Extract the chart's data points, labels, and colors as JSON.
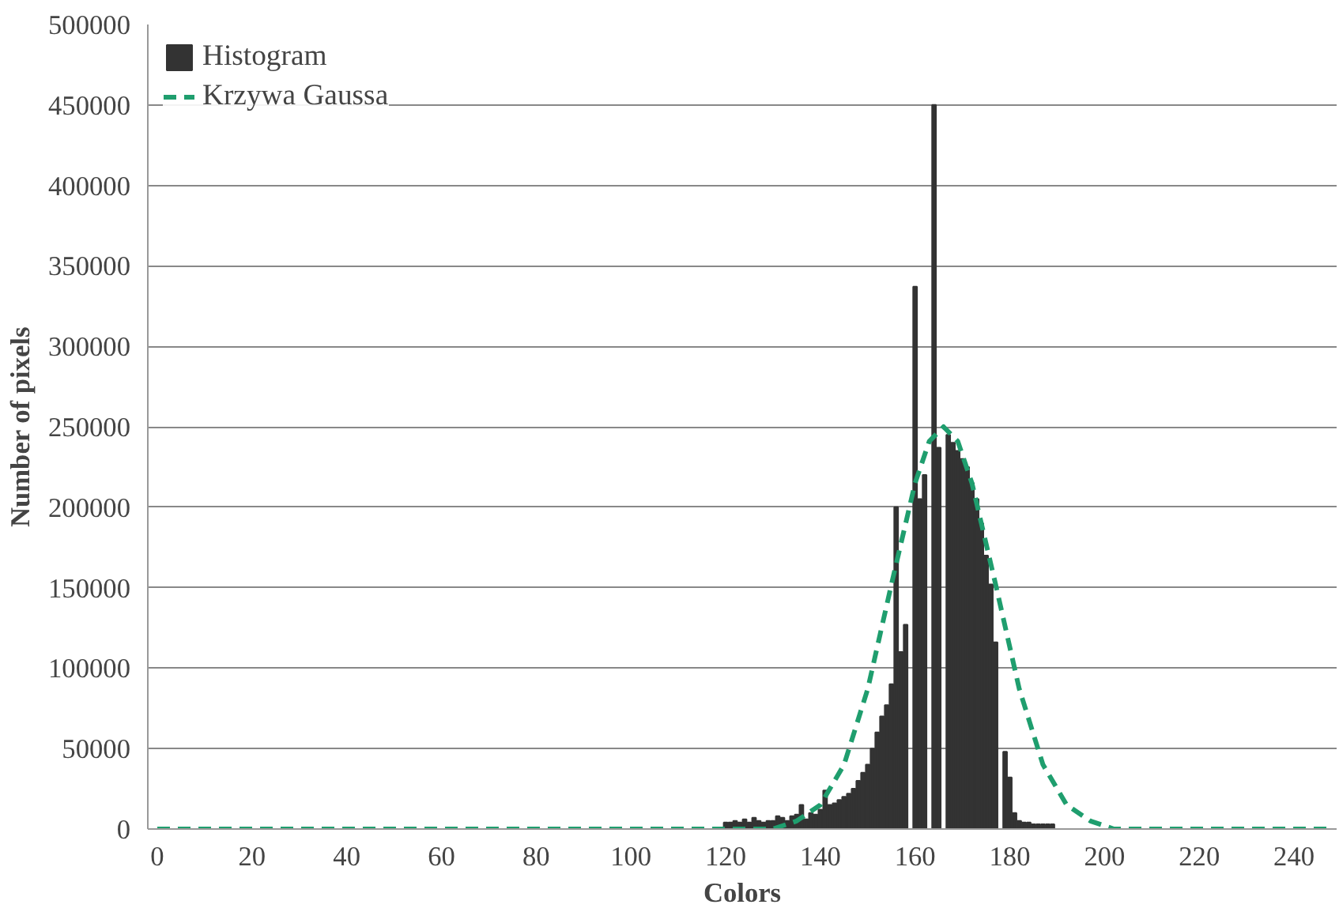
{
  "chart_data": {
    "type": "bar",
    "xlabel": "Colors",
    "ylabel": "Number of pixels",
    "x": [
      0,
      1,
      2,
      3,
      4,
      5,
      6,
      7,
      8,
      9,
      10,
      11,
      12,
      13,
      14,
      15,
      16,
      17,
      18,
      19,
      20,
      21,
      22,
      23,
      24,
      25,
      26,
      27,
      28,
      29,
      30,
      31,
      32,
      33,
      34,
      35,
      36,
      37,
      38,
      39,
      40,
      41,
      42,
      43,
      44,
      45,
      46,
      47,
      48,
      49,
      50,
      51,
      52,
      53,
      54,
      55,
      56,
      57,
      58,
      59,
      60,
      61,
      62,
      63,
      64,
      65,
      66,
      67,
      68,
      69,
      70,
      71,
      72,
      73,
      74,
      75,
      76,
      77,
      78,
      79,
      80,
      81,
      82,
      83,
      84,
      85,
      86,
      87,
      88,
      89,
      90,
      91,
      92,
      93,
      94,
      95,
      96,
      97,
      98,
      99,
      100,
      101,
      102,
      103,
      104,
      105,
      106,
      107,
      108,
      109,
      110,
      111,
      112,
      113,
      114,
      115,
      116,
      117,
      118,
      119,
      120,
      121,
      122,
      123,
      124,
      125,
      126,
      127,
      128,
      129,
      130,
      131,
      132,
      133,
      134,
      135,
      136,
      137,
      138,
      139,
      140,
      141,
      142,
      143,
      144,
      145,
      146,
      147,
      148,
      149,
      150,
      151,
      152,
      153,
      154,
      155,
      156,
      157,
      158,
      159,
      160,
      161,
      162,
      163,
      164,
      165,
      166,
      167,
      168,
      169,
      170,
      171,
      172,
      173,
      174,
      175,
      176,
      177,
      178,
      179,
      180,
      181,
      182,
      183,
      184,
      185,
      186,
      187,
      188,
      189,
      190,
      191,
      192,
      193,
      194,
      195,
      196,
      197,
      198,
      199,
      200,
      201,
      202,
      203,
      204,
      205,
      206,
      207,
      208,
      209,
      210,
      211,
      212,
      213,
      214,
      215,
      216,
      217,
      218,
      219,
      220,
      221,
      222,
      223,
      224,
      225,
      226,
      227,
      228,
      229,
      230,
      231,
      232,
      233,
      234,
      235,
      236,
      237,
      238,
      239,
      240,
      241,
      242,
      243,
      244,
      245,
      246,
      247,
      248
    ],
    "series": [
      {
        "name": "Histogram",
        "color": "#333333",
        "values": [
          0,
          0,
          0,
          0,
          0,
          0,
          0,
          0,
          0,
          0,
          0,
          0,
          0,
          0,
          0,
          0,
          0,
          0,
          0,
          0,
          0,
          0,
          0,
          0,
          0,
          0,
          0,
          0,
          0,
          0,
          0,
          0,
          0,
          0,
          0,
          0,
          0,
          0,
          0,
          0,
          0,
          0,
          0,
          0,
          0,
          0,
          0,
          0,
          0,
          0,
          0,
          0,
          0,
          0,
          0,
          0,
          0,
          0,
          0,
          0,
          0,
          0,
          0,
          0,
          0,
          0,
          0,
          0,
          0,
          0,
          0,
          0,
          0,
          0,
          0,
          0,
          0,
          0,
          0,
          0,
          0,
          0,
          0,
          0,
          0,
          0,
          0,
          0,
          0,
          0,
          0,
          0,
          0,
          0,
          0,
          0,
          0,
          0,
          0,
          0,
          0,
          0,
          0,
          0,
          0,
          0,
          0,
          0,
          0,
          0,
          0,
          0,
          0,
          0,
          0,
          0,
          0,
          0,
          0,
          0,
          4000,
          4000,
          5000,
          4000,
          6000,
          4000,
          7000,
          5000,
          4000,
          5000,
          5000,
          8000,
          7000,
          5000,
          8000,
          9000,
          15000,
          6000,
          10000,
          9000,
          12000,
          24000,
          15000,
          16000,
          18000,
          20000,
          22000,
          25000,
          30000,
          35000,
          40000,
          50000,
          60000,
          70000,
          77000,
          90000,
          200000,
          110000,
          127000,
          0,
          337000,
          205000,
          220000,
          0,
          450000,
          237000,
          0,
          245000,
          240000,
          235000,
          230000,
          225000,
          215000,
          205000,
          190000,
          170000,
          152000,
          116000,
          0,
          48000,
          32000,
          10000,
          5000,
          4000,
          4000,
          3000,
          3000,
          3000,
          3000,
          3000,
          0,
          0,
          0,
          0,
          0,
          0,
          0,
          0,
          0,
          0,
          0,
          0,
          0,
          0,
          0,
          0,
          0,
          0,
          0,
          0,
          0,
          0,
          0,
          0,
          0,
          0,
          0,
          0,
          0,
          0,
          0,
          0,
          0,
          0,
          0,
          0,
          0,
          0,
          0,
          0,
          0,
          0,
          0,
          0,
          0,
          0,
          0,
          0,
          0,
          0,
          0,
          0,
          0,
          0,
          0,
          0,
          0,
          0,
          0
        ]
      },
      {
        "name": "Krzywa Gaussa",
        "type": "line",
        "line_style": "dashed",
        "color": "#1f9e6e",
        "x": [
          0,
          100,
          125,
          130,
          135,
          140,
          145,
          150,
          155,
          160,
          163,
          166,
          169,
          172,
          177,
          182,
          187,
          192,
          197,
          202,
          220,
          248
        ],
        "values": [
          0,
          0,
          0,
          0,
          5000,
          15000,
          40000,
          87000,
          152000,
          215000,
          241000,
          250000,
          241000,
          215000,
          152000,
          87000,
          40000,
          15000,
          5000,
          0,
          0,
          0
        ]
      }
    ],
    "xlim": [
      -2,
      249
    ],
    "xticks": [
      0,
      20,
      40,
      60,
      80,
      100,
      120,
      140,
      160,
      180,
      200,
      220,
      240
    ],
    "ylim": [
      0,
      500000
    ],
    "yticks": [
      0,
      50000,
      100000,
      150000,
      200000,
      250000,
      300000,
      350000,
      400000,
      450000,
      500000
    ],
    "grid": "y",
    "legend": "top left"
  }
}
